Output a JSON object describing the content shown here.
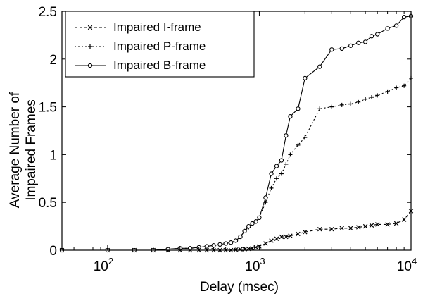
{
  "chart_data": {
    "type": "line",
    "xlabel": "Delay (msec)",
    "ylabel": [
      "Average Number of",
      "Impaired Frames"
    ],
    "xscale": "log",
    "xlim": [
      50,
      10000
    ],
    "ylim": [
      0,
      2.5
    ],
    "grid": false,
    "legend_position": "top-left",
    "x_ticks": [
      {
        "value": 100,
        "base": "10",
        "exp": "2"
      },
      {
        "value": 1000,
        "base": "10",
        "exp": "3"
      },
      {
        "value": 10000,
        "base": "10",
        "exp": "4"
      }
    ],
    "y_ticks": [
      {
        "value": 0,
        "label": "0"
      },
      {
        "value": 0.5,
        "label": "0.5"
      },
      {
        "value": 1,
        "label": "1"
      },
      {
        "value": 1.5,
        "label": "1.5"
      },
      {
        "value": 2,
        "label": "2"
      },
      {
        "value": 2.5,
        "label": "2.5"
      }
    ],
    "series": [
      {
        "name": "Impaired I-frame",
        "marker": "x",
        "dash": "4,3",
        "color": "#000000",
        "x": [
          50,
          100,
          150,
          200,
          250,
          300,
          350,
          400,
          450,
          500,
          550,
          600,
          650,
          700,
          750,
          800,
          850,
          900,
          950,
          1000,
          1100,
          1200,
          1300,
          1400,
          1500,
          1600,
          1800,
          2000,
          2500,
          3000,
          3500,
          4000,
          4500,
          5000,
          5500,
          6000,
          7000,
          8000,
          9000,
          10000
        ],
        "y": [
          0,
          0,
          0,
          0,
          0,
          0,
          0,
          0,
          0,
          0,
          0,
          0,
          0,
          0.005,
          0.01,
          0.01,
          0.015,
          0.02,
          0.03,
          0.04,
          0.07,
          0.1,
          0.12,
          0.14,
          0.14,
          0.15,
          0.17,
          0.19,
          0.22,
          0.22,
          0.23,
          0.23,
          0.24,
          0.25,
          0.26,
          0.27,
          0.27,
          0.28,
          0.32,
          0.41
        ]
      },
      {
        "name": "Impaired P-frame",
        "marker": "+",
        "dash": "2,3",
        "color": "#000000",
        "x": [
          50,
          100,
          150,
          200,
          250,
          300,
          350,
          400,
          450,
          500,
          550,
          600,
          650,
          700,
          750,
          800,
          850,
          900,
          950,
          1000,
          1100,
          1200,
          1300,
          1400,
          1500,
          1600,
          1800,
          2000,
          2500,
          3000,
          3500,
          4000,
          4500,
          5000,
          5500,
          6000,
          7000,
          8000,
          9000,
          10000
        ],
        "y": [
          0,
          0,
          0,
          0,
          0.01,
          0.02,
          0.02,
          0.03,
          0.04,
          0.05,
          0.06,
          0.07,
          0.08,
          0.1,
          0.14,
          0.2,
          0.24,
          0.28,
          0.3,
          0.34,
          0.5,
          0.65,
          0.75,
          0.8,
          0.9,
          1.0,
          1.1,
          1.18,
          1.48,
          1.5,
          1.52,
          1.53,
          1.55,
          1.58,
          1.6,
          1.62,
          1.66,
          1.7,
          1.72,
          1.8
        ]
      },
      {
        "name": "Impaired B-frame",
        "marker": "o",
        "dash": "",
        "color": "#000000",
        "x": [
          50,
          100,
          150,
          200,
          250,
          300,
          350,
          400,
          450,
          500,
          550,
          600,
          650,
          700,
          750,
          800,
          850,
          900,
          950,
          1000,
          1100,
          1200,
          1300,
          1400,
          1500,
          1600,
          1800,
          2000,
          2500,
          3000,
          3500,
          4000,
          4500,
          5000,
          5500,
          6000,
          7000,
          8000,
          9000,
          10000
        ],
        "y": [
          0,
          0,
          0,
          0,
          0.01,
          0.02,
          0.02,
          0.03,
          0.04,
          0.05,
          0.06,
          0.07,
          0.08,
          0.1,
          0.14,
          0.2,
          0.25,
          0.28,
          0.3,
          0.34,
          0.55,
          0.8,
          0.88,
          0.94,
          1.2,
          1.4,
          1.48,
          1.8,
          1.92,
          2.1,
          2.11,
          2.14,
          2.17,
          2.18,
          2.24,
          2.26,
          2.32,
          2.35,
          2.44,
          2.45
        ]
      }
    ]
  }
}
